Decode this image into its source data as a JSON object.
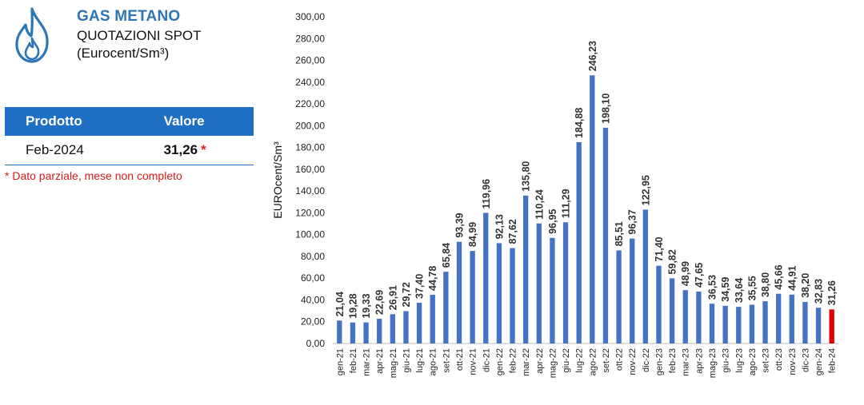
{
  "header": {
    "title": "GAS METANO",
    "subtitle": "QUOTAZIONI SPOT",
    "unit": "(Eurocent/Sm³)"
  },
  "table": {
    "col_product": "Prodotto",
    "col_value": "Valore",
    "row_product": "Feb-2024",
    "row_value": "31,26",
    "row_marker": "*"
  },
  "note": "* Dato parziale, mese non completo",
  "colors": {
    "bar": "#4472c4",
    "highlight": "#e00000",
    "header": "#1f6fc4"
  },
  "chart_data": {
    "type": "bar",
    "ylabel": "EUROcent/Sm³",
    "ylim": [
      0,
      300
    ],
    "ytick_step": 20,
    "grid": false,
    "categories": [
      "gen-21",
      "feb-21",
      "mar-21",
      "apr-21",
      "mag-21",
      "giu-21",
      "lug-21",
      "ago-21",
      "set-21",
      "ott-21",
      "nov-21",
      "dic-21",
      "gen-22",
      "feb-22",
      "mar-22",
      "apr-22",
      "mag-22",
      "giu-22",
      "lug-22",
      "ago-22",
      "set-22",
      "ott-22",
      "nov-22",
      "dic-22",
      "gen-23",
      "feb-23",
      "mar-23",
      "apr-23",
      "mag-23",
      "giu-23",
      "lug-23",
      "ago-23",
      "set-23",
      "ott-23",
      "nov-23",
      "dic-23",
      "gen-24",
      "feb-24"
    ],
    "values": [
      21.04,
      19.28,
      19.33,
      22.69,
      26.91,
      29.72,
      37.4,
      44.78,
      65.84,
      93.39,
      84.99,
      119.96,
      92.13,
      87.62,
      135.8,
      110.24,
      96.95,
      111.29,
      184.88,
      246.23,
      198.1,
      85.51,
      96.37,
      122.95,
      71.4,
      59.82,
      48.99,
      47.65,
      36.53,
      34.59,
      33.64,
      35.55,
      38.8,
      45.66,
      44.91,
      38.2,
      32.83,
      31.26
    ],
    "labels": [
      "21,04",
      "19,28",
      "19,33",
      "22,69",
      "26,91",
      "29,72",
      "37,40",
      "44,78",
      "65,84",
      "93,39",
      "84,99",
      "119,96",
      "92,13",
      "87,62",
      "135,80",
      "110,24",
      "96,95",
      "111,29",
      "184,88",
      "246,23",
      "198,10",
      "85,51",
      "96,37",
      "122,95",
      "71,40",
      "59,82",
      "48,99",
      "47,65",
      "36,53",
      "34,59",
      "33,64",
      "35,55",
      "38,80",
      "45,66",
      "44,91",
      "38,20",
      "32,83",
      "31,26"
    ],
    "highlight_index": 37
  }
}
